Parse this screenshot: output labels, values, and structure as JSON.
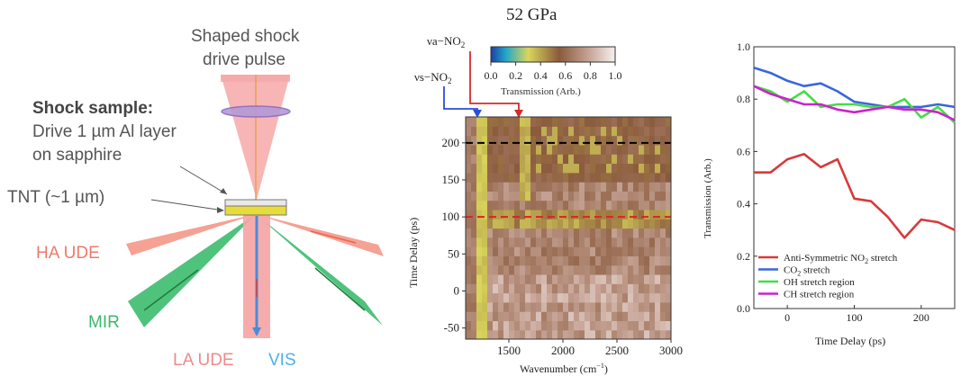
{
  "schematic": {
    "shaped_pulse_label_line1": "Shaped shock",
    "shaped_pulse_label_line2": "drive pulse",
    "sample_title": "Shock sample:",
    "sample_line1": "Drive 1 µm Al layer",
    "sample_line2": "on sapphire",
    "tnt_label": "TNT (~1 µm)",
    "ha_ude_label": "HA UDE",
    "mir_label": "MIR",
    "la_ude_label": "LA UDE",
    "vis_label": "VIS",
    "colors": {
      "drive_pulse": "#f6a3a3",
      "ha_ude": "#f08a7a",
      "mir": "#3cb86a",
      "vis": "#4a8bd8",
      "la_ude_text": "#ee8a8a",
      "ha_ude_text": "#ee7a6a",
      "mir_text": "#3cb86a",
      "vis_text": "#4fb0ea"
    }
  },
  "heatmap": {
    "title": "52 GPa",
    "va_label": "νa−NO",
    "va_sub": "2",
    "vs_label": "νs−NO",
    "vs_sub": "2",
    "colorbar_ticks": [
      "0.0",
      "0.2",
      "0.4",
      "0.6",
      "0.8",
      "1.0"
    ],
    "colorbar_label": "Transmission (Arb.)",
    "xlabel": "Wavenumber (cm",
    "xlabel_sup": "−1",
    "xlabel_end": ")",
    "ylabel": "Time Delay (ps)",
    "x_ticks": [
      "1500",
      "2000",
      "2500",
      "3000"
    ],
    "y_ticks": [
      "200",
      "150",
      "100",
      "50",
      "0",
      "-50"
    ]
  },
  "chart_data": [
    {
      "type": "heatmap",
      "title": "52 GPa",
      "xlabel": "Wavenumber (cm−1)",
      "ylabel": "Time Delay (ps)",
      "xlim": [
        1100,
        3000
      ],
      "ylim": [
        -65,
        235
      ],
      "colorbar_range": [
        0.0,
        1.0
      ],
      "colorbar_label": "Transmission (Arb.)",
      "reference_lines": [
        {
          "axis": "y",
          "value": 200,
          "color": "#000000",
          "style": "dashed"
        },
        {
          "axis": "y",
          "value": 100,
          "color": "#e02020",
          "style": "dashed"
        }
      ],
      "band_markers": [
        {
          "label": "νs−NO2",
          "x": 1260,
          "color": "#2a4fd8"
        },
        {
          "label": "νa−NO2",
          "x": 1620,
          "color": "#d82a2a"
        }
      ]
    },
    {
      "type": "line",
      "xlabel": "Time Delay (ps)",
      "ylabel": "Transmission (Arb.)",
      "xlim": [
        -50,
        250
      ],
      "ylim": [
        0.0,
        1.0
      ],
      "x_ticks": [
        0,
        100,
        200
      ],
      "y_ticks": [
        0.0,
        0.2,
        0.4,
        0.6,
        0.8,
        1.0
      ],
      "y_tick_labels": [
        "0.0",
        "0.2",
        "0.4",
        "0.6",
        "0.8",
        "1.0"
      ],
      "legend_position": "bottom-left",
      "series": [
        {
          "name": "Anti-Symmetric NO2 stretch",
          "color": "#d63a3a",
          "x": [
            -50,
            -25,
            0,
            25,
            50,
            75,
            100,
            125,
            150,
            175,
            200,
            225,
            250
          ],
          "y": [
            0.52,
            0.52,
            0.57,
            0.59,
            0.54,
            0.57,
            0.42,
            0.41,
            0.35,
            0.27,
            0.34,
            0.33,
            0.3
          ]
        },
        {
          "name": "CO2 stretch",
          "color": "#3a66dd",
          "x": [
            -50,
            -25,
            0,
            25,
            50,
            75,
            100,
            125,
            150,
            175,
            200,
            225,
            250
          ],
          "y": [
            0.92,
            0.9,
            0.87,
            0.85,
            0.86,
            0.83,
            0.79,
            0.78,
            0.77,
            0.77,
            0.77,
            0.78,
            0.77
          ]
        },
        {
          "name": "OH stretch region",
          "color": "#44dd44",
          "x": [
            -50,
            -25,
            0,
            25,
            50,
            75,
            100,
            125,
            150,
            175,
            200,
            225,
            250
          ],
          "y": [
            0.85,
            0.83,
            0.79,
            0.83,
            0.77,
            0.78,
            0.78,
            0.77,
            0.77,
            0.8,
            0.73,
            0.77,
            0.71
          ]
        },
        {
          "name": "CH stretch region",
          "color": "#cc22cc",
          "x": [
            -50,
            -25,
            0,
            25,
            50,
            75,
            100,
            125,
            150,
            175,
            200,
            225,
            250
          ],
          "y": [
            0.85,
            0.82,
            0.8,
            0.78,
            0.78,
            0.76,
            0.75,
            0.76,
            0.77,
            0.76,
            0.76,
            0.75,
            0.72
          ]
        }
      ]
    }
  ],
  "line_chart_text": {
    "ylabel": "Transmission (Arb.)",
    "xlabel": "Time Delay (ps)",
    "legend": [
      {
        "pre": "Anti-Symmetric NO",
        "sub": "2",
        "post": " stretch"
      },
      {
        "pre": "CO",
        "sub": "2",
        "post": " stretch"
      },
      {
        "pre": "OH stretch region",
        "sub": "",
        "post": ""
      },
      {
        "pre": "CH stretch region",
        "sub": "",
        "post": ""
      }
    ]
  }
}
